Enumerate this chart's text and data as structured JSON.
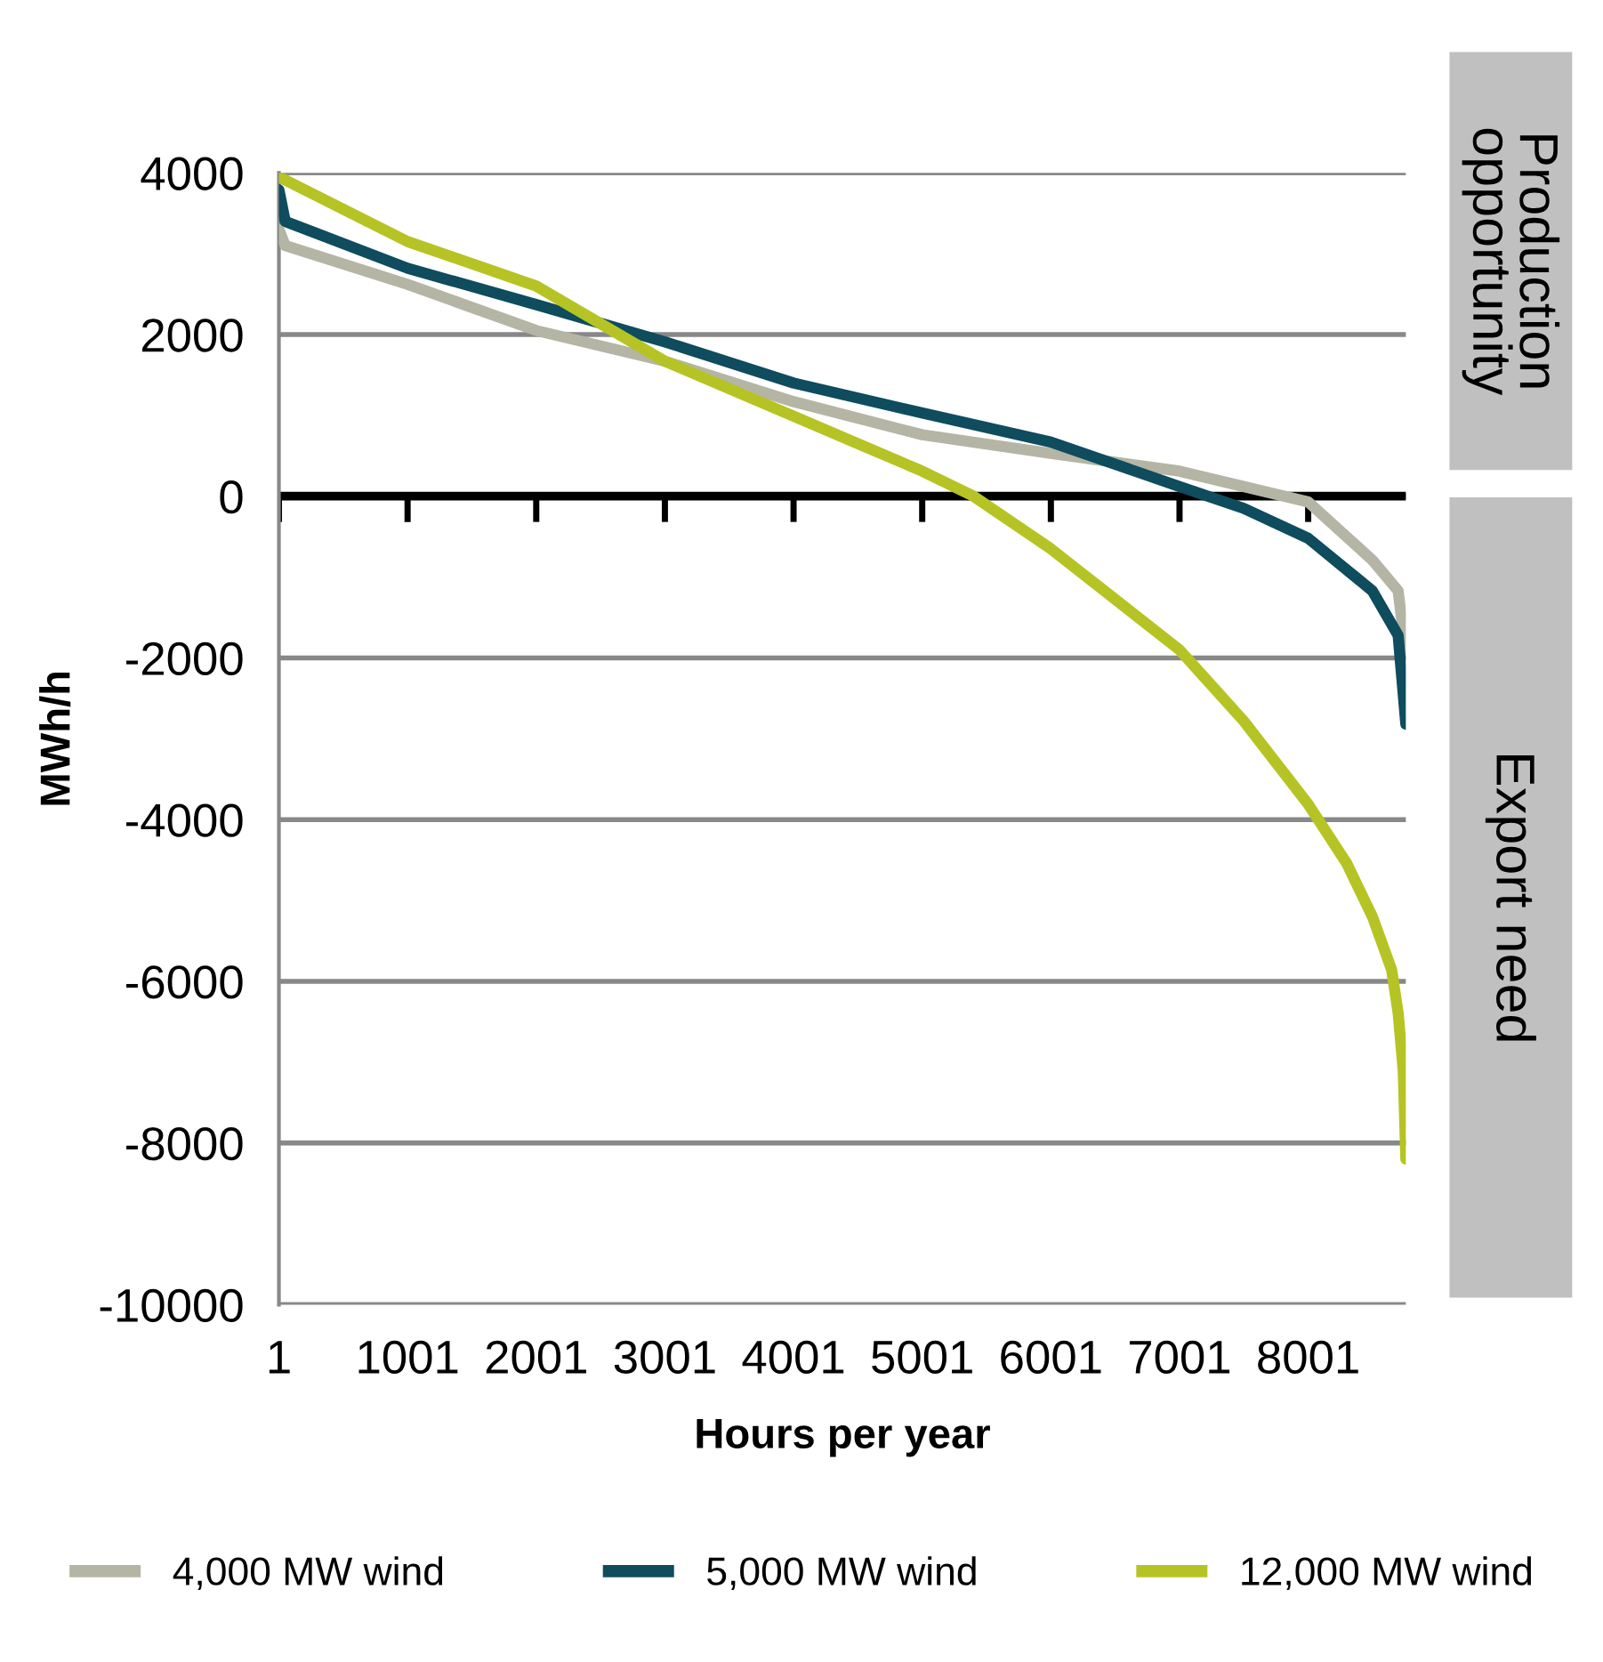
{
  "chart_data": {
    "type": "line",
    "xlabel": "Hours per year",
    "ylabel": "MWh/h",
    "xlim": [
      1,
      8760
    ],
    "xticks": [
      1,
      1001,
      2001,
      3001,
      4001,
      5001,
      6001,
      7001,
      8001
    ],
    "ylim": [
      -10000,
      4000
    ],
    "yticks": [
      -10000,
      -8000,
      -6000,
      -4000,
      -2000,
      0,
      2000,
      4000
    ],
    "grid": "y",
    "legend": "bottom",
    "marker": "none",
    "line_style": "solid",
    "ref_lines": [
      {
        "axis": "y",
        "value": 0,
        "color": "#000000"
      }
    ],
    "annotations": [
      "Production opportunity",
      "Export need"
    ],
    "series": [
      {
        "name": "4,000 MW wind",
        "color": "#b4b5a4",
        "x": [
          1,
          50,
          1001,
          2001,
          3001,
          4001,
          5001,
          6001,
          7001,
          8001,
          8500,
          8700,
          8760
        ],
        "values": [
          3300,
          3100,
          2620,
          2050,
          1670,
          1170,
          760,
          530,
          310,
          -70,
          -790,
          -1170,
          -1950
        ]
      },
      {
        "name": "5,000 MW wind",
        "color": "#0e4c5e",
        "x": [
          1,
          50,
          1001,
          2001,
          3001,
          4001,
          5001,
          6001,
          7001,
          7500,
          8001,
          8500,
          8700,
          8760
        ],
        "values": [
          3790,
          3400,
          2820,
          2370,
          1910,
          1400,
          1030,
          670,
          120,
          -150,
          -520,
          -1170,
          -1720,
          -2820
        ]
      },
      {
        "name": "12,000 MW wind",
        "color": "#b5c424",
        "x": [
          1,
          1001,
          2001,
          3001,
          4001,
          5001,
          5400,
          6001,
          7001,
          7500,
          8001,
          8300,
          8500,
          8650,
          8700,
          8740,
          8760
        ],
        "values": [
          3950,
          3150,
          2600,
          1670,
          990,
          310,
          0,
          -650,
          -1900,
          -2780,
          -3810,
          -4540,
          -5200,
          -5860,
          -6390,
          -7110,
          -8200
        ]
      }
    ]
  }
}
